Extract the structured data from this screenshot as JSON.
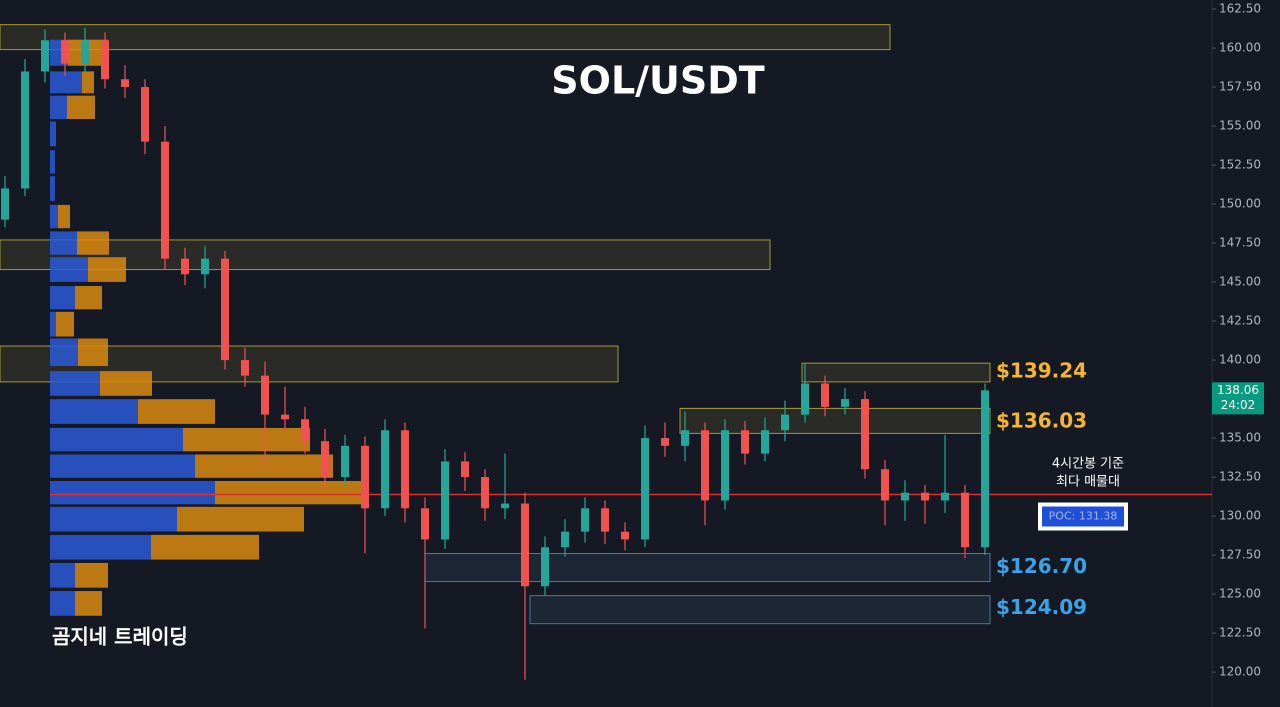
{
  "chart_data": {
    "type": "candlestick",
    "title": "SOL/USDT",
    "watermark": "곰지네 트레이딩",
    "annotation": [
      "4시간봉 기준",
      "최다 매물대"
    ],
    "up_color": "#26a69a",
    "down_color": "#ef5350",
    "grid": false,
    "ylim": [
      117.76,
      163.08
    ],
    "yticks": [
      {
        "value": 120,
        "label": "120.00"
      },
      {
        "value": 122.5,
        "label": "122.50"
      },
      {
        "value": 125,
        "label": "125.00"
      },
      {
        "value": 127.5,
        "label": "127.50"
      },
      {
        "value": 130,
        "label": "130.00"
      },
      {
        "value": 132.5,
        "label": "132.50"
      },
      {
        "value": 135,
        "label": "135.00"
      },
      {
        "value": 137.5,
        "label": "137.50"
      },
      {
        "value": 140,
        "label": "140.00"
      },
      {
        "value": 142.5,
        "label": "142.50"
      },
      {
        "value": 145,
        "label": "145.00"
      },
      {
        "value": 147.5,
        "label": "147.50"
      },
      {
        "value": 150,
        "label": "150.00"
      },
      {
        "value": 152.5,
        "label": "152.50"
      },
      {
        "value": 155,
        "label": "155.00"
      },
      {
        "value": 157.5,
        "label": "157.50"
      },
      {
        "value": 160,
        "label": "160.00"
      },
      {
        "value": 162.5,
        "label": "162.50"
      }
    ],
    "open": [
      149,
      151,
      158.5,
      160.5,
      159,
      160.5,
      158,
      157.5,
      154,
      146.5,
      145.5,
      146.5,
      140,
      139,
      136.5,
      136.2,
      134.8,
      132.5,
      134.5,
      130.5,
      135.5,
      130.5,
      128.5,
      133.5,
      132.5,
      130.5,
      130.8,
      125.5,
      128,
      129,
      130.5,
      129,
      128.5,
      135,
      134.5,
      135.5,
      131,
      135.5,
      134,
      135.5,
      136.5,
      138.5,
      137,
      137.5,
      133,
      131,
      131.5,
      131,
      131.5,
      128
    ],
    "high": [
      151.8,
      159.3,
      161.2,
      161,
      161.3,
      161,
      158.9,
      158,
      155,
      147.2,
      147.3,
      147,
      140.8,
      139.9,
      138.3,
      137,
      135.6,
      135.2,
      135.1,
      136.2,
      136,
      131.2,
      134.3,
      134.1,
      133,
      134,
      131.5,
      128.7,
      129.8,
      131.2,
      131,
      129.6,
      135.8,
      136,
      136.7,
      136,
      136.2,
      136.1,
      136.3,
      137.4,
      139.8,
      139,
      138.2,
      138,
      133.6,
      132.3,
      132,
      135.2,
      132,
      138.5
    ],
    "low": [
      148.5,
      150.5,
      157.8,
      158.2,
      158.5,
      157.4,
      156.8,
      153.2,
      145.8,
      144.8,
      144.6,
      139.4,
      138.3,
      133.2,
      135.5,
      134,
      131.8,
      131.9,
      127.6,
      130,
      129.6,
      122.8,
      127.9,
      131.6,
      129.7,
      129.8,
      119.5,
      124.9,
      127.4,
      128.3,
      128.2,
      127.8,
      128,
      133.8,
      133.5,
      129.4,
      130.4,
      133.3,
      133.5,
      134.8,
      136,
      136.4,
      136.5,
      132.4,
      129.4,
      129.7,
      129.5,
      130.2,
      127.3,
      127.5
    ],
    "close": [
      151,
      158.5,
      160.5,
      159,
      160.5,
      158,
      157.5,
      154,
      146.5,
      145.5,
      146.5,
      140,
      139,
      136.5,
      136.2,
      134.8,
      132.5,
      134.5,
      130.5,
      135.5,
      130.5,
      128.5,
      133.5,
      132.5,
      130.5,
      130.8,
      125.5,
      128,
      129,
      130.5,
      129,
      128.5,
      135,
      134.5,
      135.5,
      131,
      135.5,
      134,
      135.5,
      136.5,
      138.5,
      137,
      137.5,
      133,
      131,
      131.5,
      131,
      131.5,
      128,
      138.06
    ],
    "profile": {
      "prices": [
        159.7,
        157.8,
        156.2,
        154.5,
        152.7,
        151,
        149.2,
        147.5,
        145.8,
        144,
        142.3,
        140.5,
        138.5,
        136.7,
        134.9,
        133.2,
        131.5,
        129.8,
        128,
        126.2,
        124.4
      ],
      "buy": [
        18,
        32,
        17,
        6,
        5,
        5,
        8,
        27,
        38,
        25,
        6,
        28,
        50,
        88,
        133,
        145,
        165,
        127,
        101,
        25,
        25
      ],
      "sell": [
        40,
        12,
        28,
        0,
        0,
        0,
        12,
        32,
        38,
        27,
        18,
        30,
        52,
        77,
        127,
        138,
        150,
        127,
        108,
        33,
        27
      ],
      "buy_color": "#2a5bd7",
      "sell_color": "#d98a0f"
    },
    "zones": [
      {
        "low": 159.9,
        "high": 161.5,
        "start": -0.25,
        "end": 44.25,
        "color": "#c9b53a"
      },
      {
        "low": 145.8,
        "high": 147.7,
        "start": -0.25,
        "end": 38.25,
        "color": "#c9b53a"
      },
      {
        "low": 138.6,
        "high": 140.9,
        "start": -0.25,
        "end": 30.65,
        "color": "#c9b53a"
      },
      {
        "low": 138.6,
        "high": 139.8,
        "start": 39.85,
        "end": 49.25,
        "color": "#c9b53a"
      },
      {
        "low": 135.3,
        "high": 136.9,
        "start": 33.75,
        "end": 49.25,
        "color": "#c9b53a"
      },
      {
        "low": 125.8,
        "high": 127.6,
        "start": 21,
        "end": 49.25,
        "color": "#5b8db8"
      },
      {
        "low": 123.1,
        "high": 124.9,
        "start": 26.25,
        "end": 49.25,
        "color": "#5b8db8"
      }
    ],
    "price_labels": [
      {
        "value": 139.24,
        "label": "$139.24",
        "color": "#f5b52e"
      },
      {
        "value": 136.03,
        "label": "$136.03",
        "color": "#f5b52e"
      },
      {
        "value": 126.7,
        "label": "$126.70",
        "color": "#3aa3e8"
      },
      {
        "value": 124.09,
        "label": "$124.09",
        "color": "#3aa3e8"
      }
    ],
    "poc": {
      "value": 131.38,
      "label": "POC: 131.38",
      "color": "#e0302d"
    },
    "last_price": {
      "value": 138.06,
      "label": "138.06",
      "timer": "24:02",
      "color": "#089981"
    }
  }
}
